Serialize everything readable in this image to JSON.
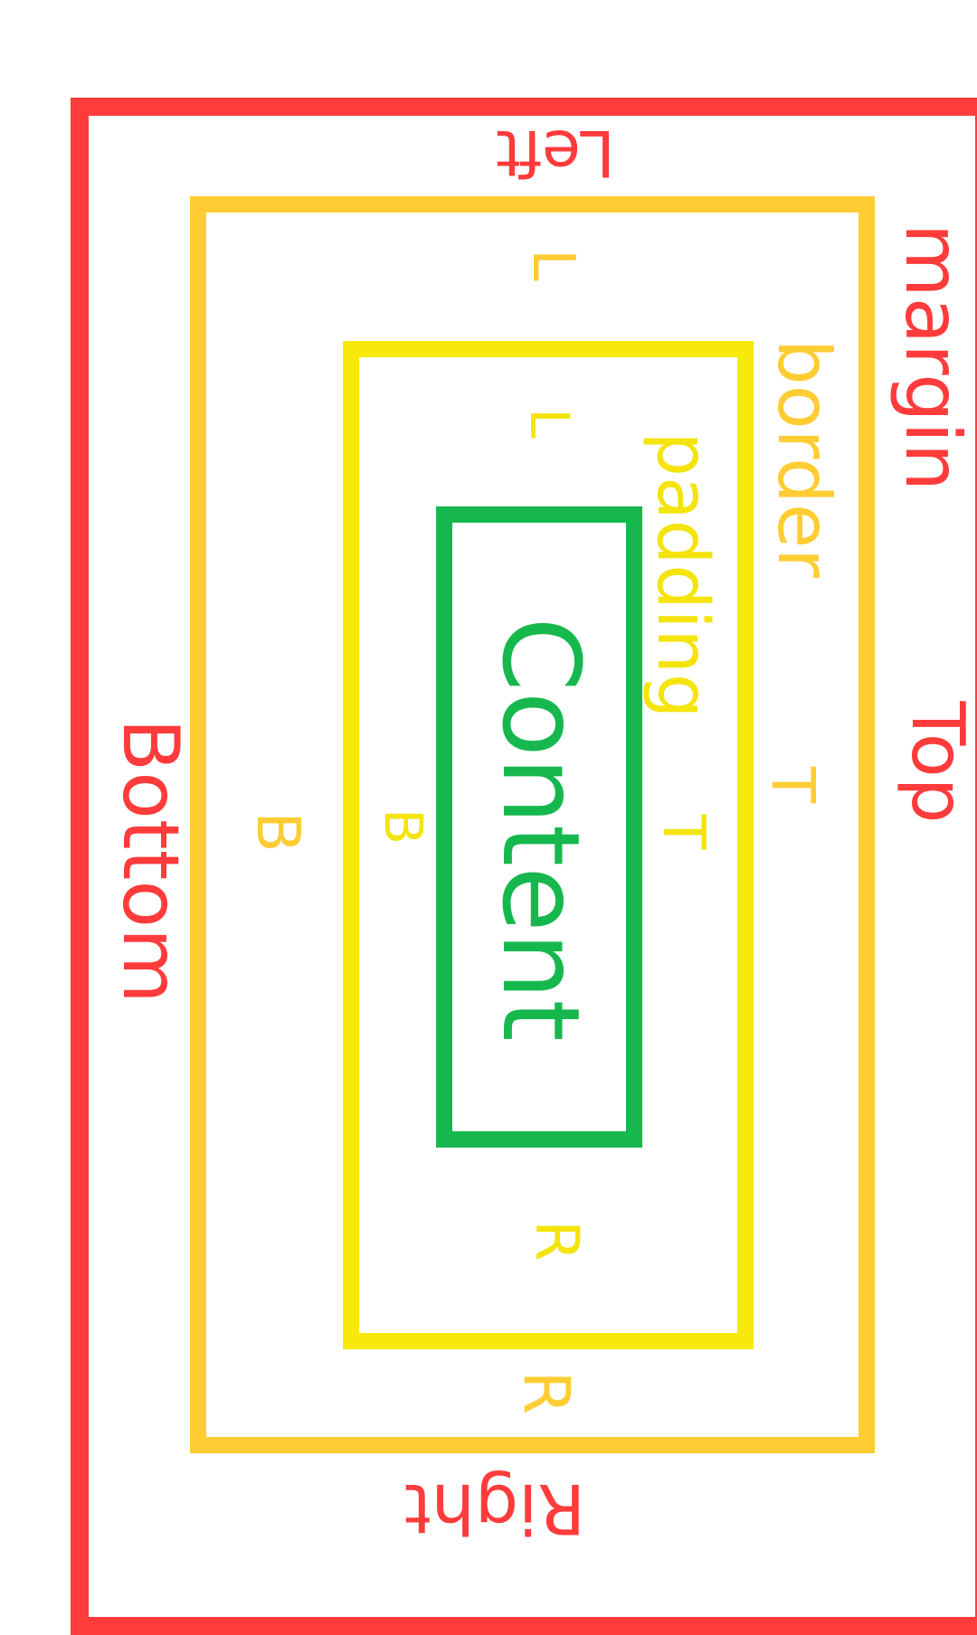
{
  "colors": {
    "margin": "#ff3b3b",
    "border": "#ffcd33",
    "padding": "#f7ea0a",
    "content": "#16b84e"
  },
  "labels": {
    "margin": "margin",
    "border": "border",
    "padding": "padding",
    "content": "Content",
    "margin_top": "Top",
    "margin_bottom": "Bottom",
    "margin_left": "Left",
    "margin_right": "Right",
    "border_top": "T",
    "border_bottom": "B",
    "border_left": "L",
    "border_right": "R",
    "padding_top": "T",
    "padding_bottom": "B",
    "padding_left": "L",
    "padding_right": "R"
  }
}
